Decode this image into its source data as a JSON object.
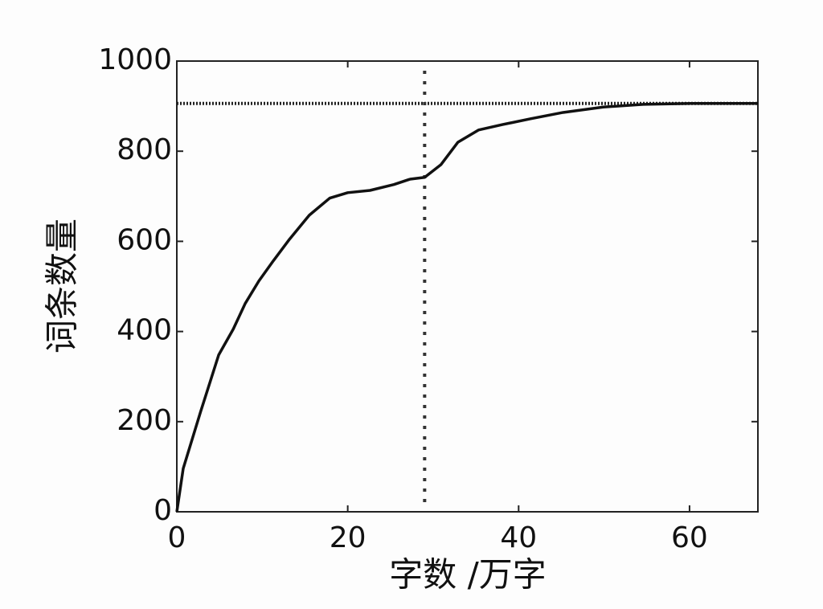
{
  "chart_data": {
    "type": "line",
    "xlabel": "字数 /万字",
    "ylabel": "词条数量",
    "x": [
      0,
      0.75,
      2.8,
      4.9,
      6.6,
      8,
      9.6,
      11.3,
      13.2,
      15.5,
      17.9,
      20,
      22.6,
      25.4,
      27.3,
      29,
      30.9,
      32.9,
      35.3,
      38.1,
      41.4,
      45.2,
      49.9,
      54.6,
      60.2,
      68
    ],
    "values": [
      0,
      96,
      223,
      348,
      405,
      462,
      512,
      557,
      605,
      658,
      696,
      708,
      713,
      726,
      738,
      742,
      770,
      820,
      847,
      859,
      872,
      886,
      898,
      904,
      906,
      906
    ],
    "color": "#111111",
    "hline": 906,
    "vline": 29,
    "xlim": [
      0,
      68
    ],
    "xticks": [
      0,
      20,
      40,
      60
    ],
    "ylim": [
      0,
      1000
    ],
    "yticks": [
      0,
      200,
      400,
      600,
      800,
      1000
    ]
  }
}
